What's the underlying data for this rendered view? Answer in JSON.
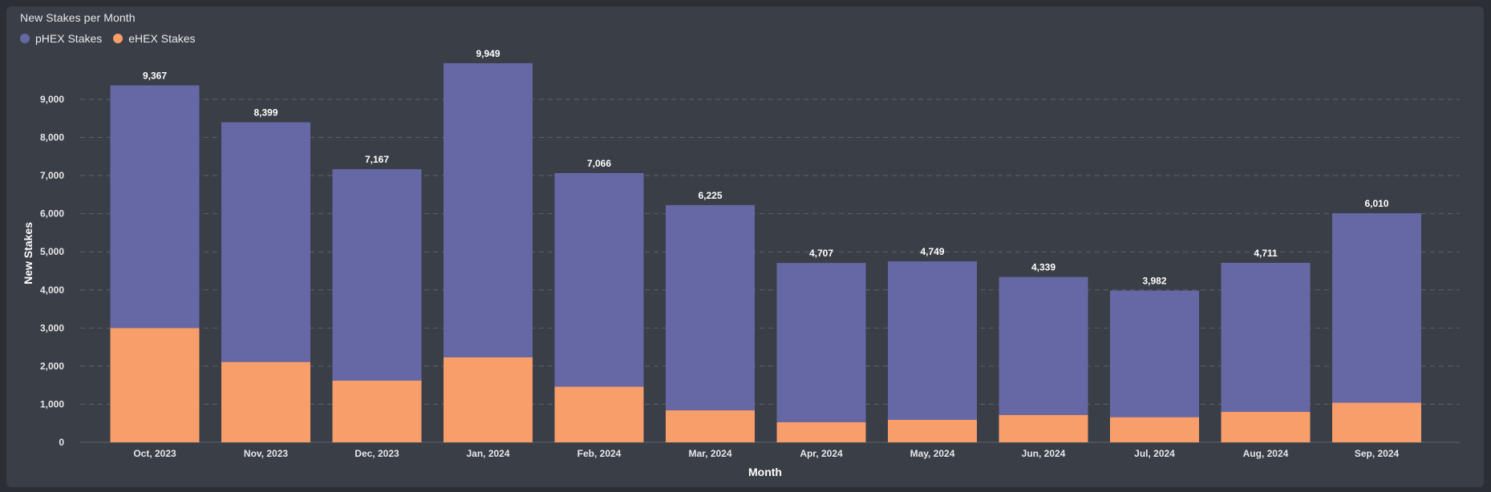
{
  "colors": {
    "background": "#3a3e46",
    "phex": "#6668a5",
    "ehex": "#f89e6b",
    "grid": "#5d616a"
  },
  "chart_data": {
    "type": "bar",
    "stacked": true,
    "title": "New Stakes per Month",
    "xlabel": "Month",
    "ylabel": "New Stakes",
    "ylim": [
      0,
      10000
    ],
    "yticks": [
      0,
      1000,
      2000,
      3000,
      4000,
      5000,
      6000,
      7000,
      8000,
      9000
    ],
    "ytick_labels": [
      "0",
      "1,000",
      "2,000",
      "3,000",
      "4,000",
      "5,000",
      "6,000",
      "7,000",
      "8,000",
      "9,000"
    ],
    "grid": true,
    "legend_position": "top-left",
    "categories": [
      "Oct, 2023",
      "Nov, 2023",
      "Dec, 2023",
      "Jan, 2024",
      "Feb, 2024",
      "Mar, 2024",
      "Apr, 2024",
      "May, 2024",
      "Jun, 2024",
      "Jul, 2024",
      "Aug, 2024",
      "Sep, 2024"
    ],
    "series": [
      {
        "name": "eHEX Stakes",
        "color": "#f89e6b",
        "values": [
          3000,
          2110,
          1620,
          2230,
          1460,
          840,
          530,
          590,
          720,
          660,
          800,
          1040
        ]
      },
      {
        "name": "pHEX Stakes",
        "color": "#6668a5",
        "values": [
          6367,
          6289,
          5547,
          7719,
          5606,
          5385,
          4177,
          4159,
          3619,
          3322,
          3911,
          4970
        ]
      }
    ],
    "totals": [
      9367,
      8399,
      7167,
      9949,
      7066,
      6225,
      4707,
      4749,
      4339,
      3982,
      4711,
      6010
    ],
    "total_labels": [
      "9,367",
      "8,399",
      "7,167",
      "9,949",
      "7,066",
      "6,225",
      "4,707",
      "4,749",
      "4,339",
      "3,982",
      "4,711",
      "6,010"
    ]
  }
}
